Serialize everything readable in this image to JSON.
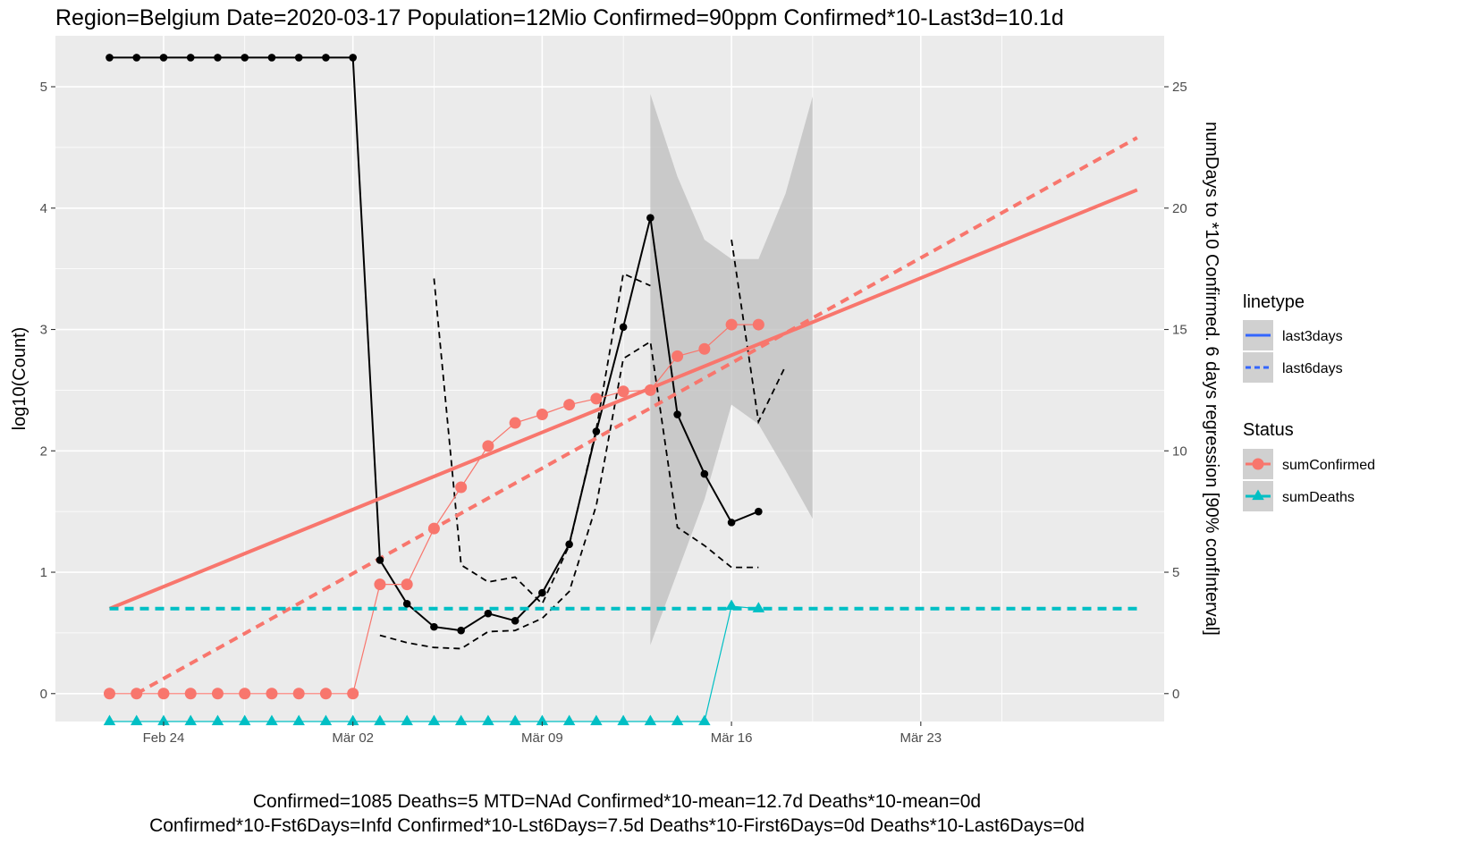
{
  "chart_data": {
    "type": "line",
    "title": "Region=Belgium Date=2020-03-17  Population=12Mio Confirmed=90ppm  Confirmed*10-Last3d=10.1d",
    "footer_lines": [
      "Confirmed=1085 Deaths=5  MTD=NAd   Confirmed*10-mean=12.7d  Deaths*10-mean=0d",
      "Confirmed*10-Fst6Days=Infd  Confirmed*10-Lst6Days=7.5d    Deaths*10-First6Days=0d  Deaths*10-Last6Days=0d"
    ],
    "ylabel": "log10(Count)",
    "y2label": "numDays to *10 Confirmed. 6 days regression [90% confInterval]",
    "x_ticks": [
      {
        "label": "Feb 24",
        "date": "2020-02-24"
      },
      {
        "label": "Mär 02",
        "date": "2020-03-02"
      },
      {
        "label": "Mär 09",
        "date": "2020-03-09"
      },
      {
        "label": "Mär 16",
        "date": "2020-03-16"
      },
      {
        "label": "Mär 23",
        "date": "2020-03-23"
      }
    ],
    "xlim": [
      "2020-02-20",
      "2020-04-01"
    ],
    "ylim": [
      -0.23,
      5.42
    ],
    "y_ticks": [
      0,
      1,
      2,
      3,
      4,
      5
    ],
    "y2lim": [
      -1.15,
      27.1
    ],
    "y2_ticks": [
      0,
      5,
      10,
      15,
      20,
      25
    ],
    "colors": {
      "sumConfirmed": "#F8766D",
      "sumDeaths": "#00BFC4",
      "days": "#000000",
      "ribbon": "#BEBEBE",
      "panel": "#EBEBEB",
      "legend_line": "#3366FF"
    },
    "legend": {
      "placement": "right",
      "linetype_title": "linetype",
      "linetype_items": [
        "last3days",
        "last6days"
      ],
      "status_title": "Status",
      "status_items": [
        "sumConfirmed",
        "sumDeaths"
      ]
    },
    "series": [
      {
        "name": "sumConfirmed",
        "axis": "left",
        "start_date": "2020-02-22",
        "values": [
          0,
          0,
          0,
          0,
          0,
          0,
          0,
          0,
          0,
          0,
          0.9,
          0.9,
          1.36,
          1.7,
          2.04,
          2.23,
          2.3,
          2.38,
          2.43,
          2.49,
          2.5,
          2.78,
          2.84,
          3.04,
          3.04
        ]
      },
      {
        "name": "sumDeaths",
        "axis": "left",
        "start_date": "2020-02-22",
        "values": [
          -0.23,
          -0.23,
          -0.23,
          -0.23,
          -0.23,
          -0.23,
          -0.23,
          -0.23,
          -0.23,
          -0.23,
          -0.23,
          -0.23,
          -0.23,
          -0.23,
          -0.23,
          -0.23,
          -0.23,
          -0.23,
          -0.23,
          -0.23,
          -0.23,
          -0.23,
          -0.23,
          0.72,
          0.7
        ]
      },
      {
        "name": "last3days",
        "axis": "right",
        "start_date": "2020-02-22",
        "values": [
          26.2,
          26.2,
          26.2,
          26.2,
          26.2,
          26.2,
          26.2,
          26.2,
          26.2,
          26.2,
          5.5,
          3.7,
          2.75,
          2.6,
          3.3,
          3.0,
          4.15,
          6.15,
          10.8,
          15.1,
          19.6,
          11.5,
          9.05,
          7.05,
          7.5
        ]
      },
      {
        "name": "last6days_lower",
        "axis": "right",
        "start_date": "2020-03-03",
        "values": [
          2.4,
          2.1,
          1.9,
          1.85,
          2.55,
          2.6,
          3.1,
          4.2,
          7.75,
          13.8,
          14.5,
          6.85,
          6.1,
          5.2,
          5.2
        ]
      },
      {
        "name": "last6days_upper",
        "axis": "right",
        "start_date": "2020-03-05",
        "values": [
          17.1,
          5.3,
          4.6,
          4.8,
          3.7,
          6.1,
          10.9,
          17.3,
          16.8,
          null,
          null,
          18.7,
          11.2,
          13.5
        ]
      },
      {
        "name": "confidence_band",
        "axis": "right",
        "x": [
          "2020-03-13",
          "2020-03-14",
          "2020-03-15",
          "2020-03-16",
          "2020-03-17",
          "2020-03-18",
          "2020-03-19"
        ],
        "low": [
          2.0,
          5.0,
          8.0,
          11.9,
          11.1,
          9.2,
          7.2
        ],
        "high": [
          24.7,
          21.3,
          18.7,
          17.9,
          17.9,
          20.6,
          24.6
        ]
      },
      {
        "name": "sumConfirmed_last3days_trend",
        "axis": "left",
        "x": [
          "2020-02-22",
          "2020-03-31"
        ],
        "values": [
          0.7,
          4.15
        ]
      },
      {
        "name": "sumConfirmed_last6days_trend",
        "axis": "left",
        "x": [
          "2020-02-23",
          "2020-03-31"
        ],
        "values": [
          0.0,
          4.58
        ]
      },
      {
        "name": "sumDeaths_trend",
        "axis": "left",
        "x": [
          "2020-02-22",
          "2020-03-31"
        ],
        "values": [
          0.7,
          0.7
        ]
      }
    ]
  }
}
